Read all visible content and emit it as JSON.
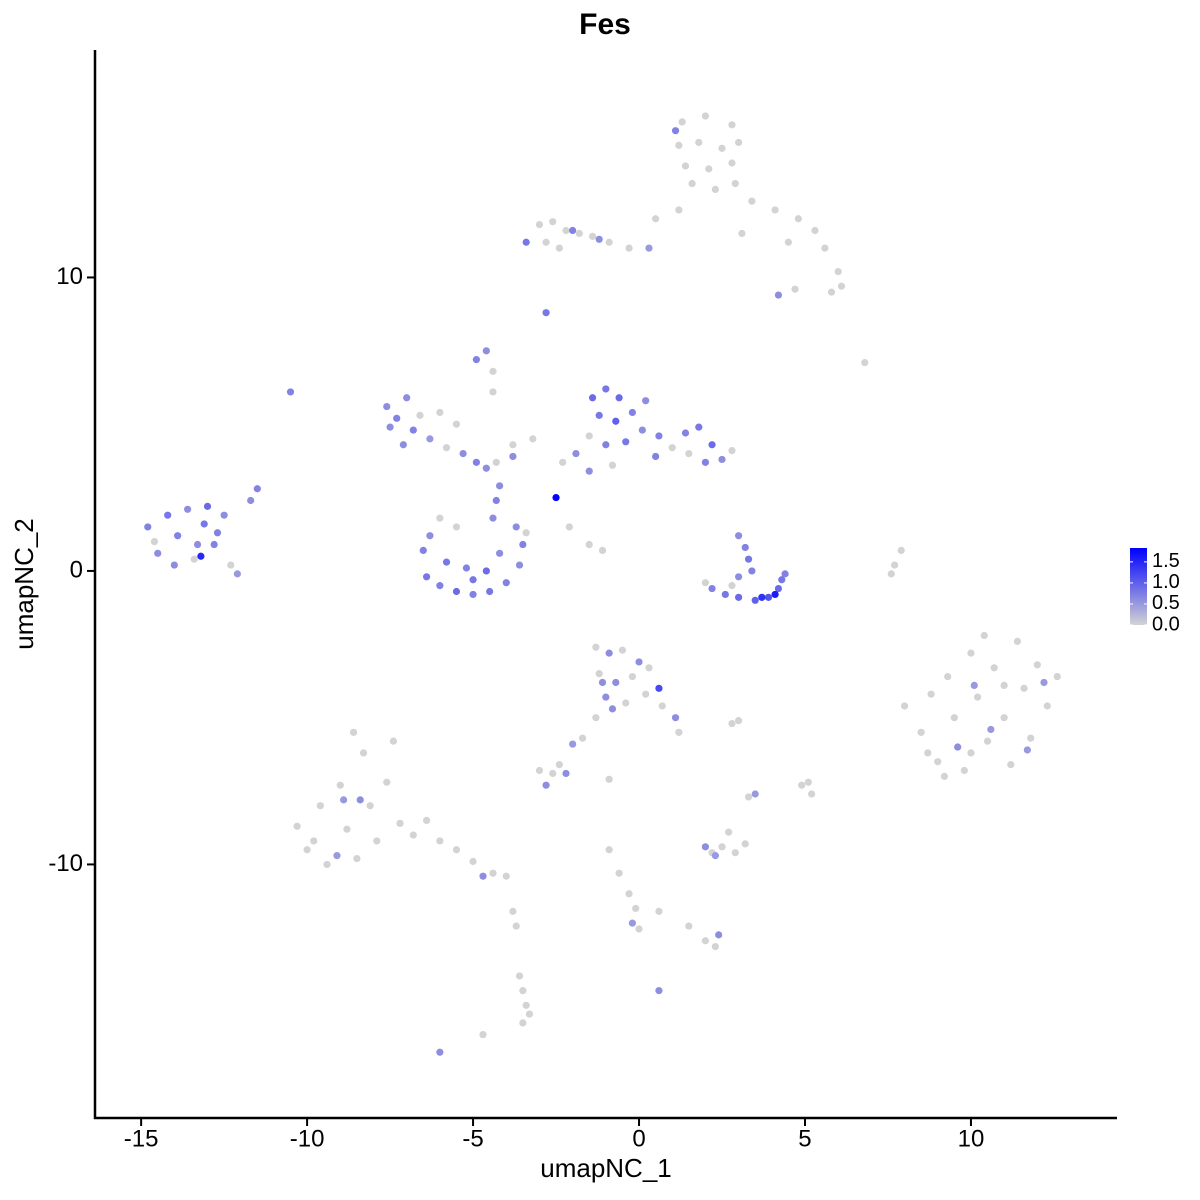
{
  "chart_data": {
    "type": "scatter",
    "title": "Fes",
    "x_label": "umapNC_1",
    "y_label": "umapNC_2",
    "xlim": [
      -16.39,
      14.4
    ],
    "ylim": [
      -18.64,
      17.75
    ],
    "xticks": [
      -15,
      -10,
      -5,
      0,
      5,
      10
    ],
    "yticks": [
      -10,
      0,
      10
    ],
    "grid": false,
    "color_scale": {
      "low": "#d3d3d3",
      "high": "#0000ff",
      "lim": [
        0,
        1.83
      ],
      "ticks": [
        {
          "value": 0,
          "label": "0.0"
        },
        {
          "value": 0.5,
          "label": "0.5"
        },
        {
          "value": 1,
          "label": "1.0"
        },
        {
          "value": 1.5,
          "label": "1.5"
        }
      ]
    },
    "x": [
      1.3,
      2.0,
      2.8,
      1.2,
      1.8,
      2.5,
      3.0,
      1.4,
      2.1,
      2.8,
      1.6,
      2.3,
      2.9,
      3.4,
      4.1,
      4.8,
      5.3,
      5.6,
      6.0,
      5.8,
      6.1,
      4.7,
      4.2,
      1.2,
      0.5,
      3.1,
      4.5,
      1.1,
      -3.0,
      -2.6,
      -2.2,
      -1.8,
      -1.4,
      -0.9,
      -0.3,
      -2.8,
      -2.4,
      -3.4,
      -2.0,
      -1.2,
      0.3,
      -2.8,
      -14.8,
      -14.5,
      -14.2,
      -13.9,
      -13.6,
      -13.4,
      -13.1,
      -12.8,
      -12.5,
      -12.3,
      -14.0,
      -13.0,
      -12.7,
      -14.6,
      -13.3,
      -12.1,
      -11.7,
      -11.5,
      -13.2,
      -10.5,
      -6.5,
      -6.4,
      -6.0,
      -5.5,
      -5.0,
      -4.5,
      -4.0,
      -3.6,
      -3.5,
      -3.7,
      -6.3,
      -5.8,
      -5.2,
      -4.6,
      -4.2,
      -5.0,
      -4.4,
      -4.3,
      -4.2,
      -6.0,
      -5.5,
      -3.4,
      -7.6,
      -7.3,
      -7.0,
      -6.8,
      -7.5,
      -6.3,
      -5.8,
      -5.3,
      -4.9,
      -4.6,
      -4.3,
      -3.8,
      -6.0,
      -5.5,
      -4.4,
      -4.9,
      -4.6,
      -4.4,
      -3.8,
      -3.2,
      -7.1,
      -6.6,
      -1.4,
      -1.0,
      -0.6,
      -1.2,
      -0.7,
      -0.2,
      -1.5,
      -1.0,
      -0.4,
      0.1,
      0.6,
      1.0,
      1.4,
      1.8,
      2.2,
      2.5,
      2.0,
      1.5,
      -1.9,
      -2.3,
      -1.5,
      0.5,
      -0.8,
      2.8,
      0.2,
      -2.5,
      3.0,
      3.2,
      3.3,
      3.4,
      3.0,
      2.2,
      2.6,
      3.0,
      3.5,
      3.9,
      4.2,
      4.4,
      4.1,
      3.7,
      2.0,
      2.8,
      4.3,
      8.0,
      8.5,
      8.8,
      9.0,
      9.3,
      9.5,
      9.8,
      10.0,
      10.2,
      10.5,
      10.7,
      11.0,
      11.2,
      11.4,
      11.6,
      11.8,
      12.0,
      12.3,
      12.6,
      10.0,
      9.2,
      8.7,
      11.0,
      10.4,
      10.6,
      9.6,
      11.7,
      12.2,
      10.1,
      7.9,
      7.7,
      7.6,
      6.8,
      -10.3,
      -10.0,
      -9.6,
      -9.4,
      -9.0,
      -8.8,
      -8.5,
      -8.3,
      -8.6,
      -8.1,
      -7.9,
      -7.6,
      -7.4,
      -7.2,
      -6.8,
      -6.4,
      -6.0,
      -5.5,
      -5.0,
      -4.4,
      -4.0,
      -9.8,
      -8.9,
      -9.1,
      -4.7,
      -8.4,
      -1.3,
      -0.9,
      -0.5,
      -1.2,
      -0.7,
      -0.2,
      0.3,
      -1.0,
      -0.4,
      0.2,
      0.7,
      1.1,
      1.2,
      -1.3,
      0.6,
      -0.8,
      0.0,
      -1.1,
      -3.0,
      -2.6,
      -2.4,
      -2.8,
      -2.2,
      -1.7,
      -2.0,
      -0.9,
      2.5,
      2.9,
      3.2,
      2.2,
      2.0,
      2.3,
      2.7,
      -0.9,
      -0.6,
      -0.3,
      -0.1,
      0.0,
      -0.2,
      0.6,
      1.5,
      2.0,
      2.3,
      2.4,
      -3.6,
      -3.5,
      -3.4,
      -3.3,
      -3.5,
      0.6,
      -6.0,
      -4.7,
      -3.8,
      -3.7,
      3.3,
      3.5,
      4.9,
      5.1,
      5.2,
      3.0,
      2.8,
      -2.1,
      -1.5,
      -1.1
    ],
    "series": [
      {
        "values": [
          15.3,
          15.5,
          15.2,
          14.5,
          14.6,
          14.4,
          14.6,
          13.8,
          13.7,
          13.9,
          13.2,
          13.0,
          13.2,
          12.6,
          12.3,
          12.0,
          11.6,
          11.0,
          10.2,
          9.5,
          9.7,
          9.6,
          9.4,
          12.3,
          12.0,
          11.5,
          11.2,
          15.0,
          11.8,
          11.9,
          11.6,
          11.5,
          11.4,
          11.2,
          11.0,
          11.2,
          11.0,
          11.2,
          11.6,
          11.3,
          11.0,
          8.8,
          1.5,
          0.6,
          1.9,
          1.2,
          2.1,
          0.4,
          1.6,
          0.9,
          1.9,
          0.2,
          0.2,
          2.2,
          1.3,
          1.0,
          0.9,
          -0.1,
          2.4,
          2.8,
          0.5,
          6.1,
          0.7,
          -0.2,
          -0.5,
          -0.7,
          -0.8,
          -0.7,
          -0.4,
          0.2,
          0.9,
          1.5,
          1.2,
          0.3,
          0.1,
          0.0,
          0.6,
          -0.3,
          1.8,
          2.4,
          2.9,
          1.8,
          1.5,
          1.3,
          5.6,
          5.2,
          5.9,
          4.8,
          4.9,
          4.5,
          4.2,
          4.0,
          3.7,
          3.5,
          3.7,
          3.9,
          5.4,
          5.0,
          6.1,
          7.2,
          7.5,
          6.8,
          4.3,
          4.5,
          4.3,
          5.3,
          5.9,
          6.2,
          5.9,
          5.3,
          5.1,
          5.4,
          4.6,
          4.3,
          4.4,
          4.8,
          4.6,
          4.2,
          4.7,
          4.9,
          4.3,
          3.8,
          3.7,
          4.0,
          4.0,
          3.7,
          3.4,
          3.9,
          3.6,
          4.1,
          5.8,
          2.5,
          1.2,
          0.8,
          0.4,
          0.0,
          -0.2,
          -0.6,
          -0.8,
          -0.9,
          -1.0,
          -0.9,
          -0.6,
          -0.1,
          -0.8,
          -0.9,
          -0.4,
          -0.5,
          -0.3,
          -4.6,
          -5.5,
          -4.2,
          -6.5,
          -3.6,
          -5.0,
          -6.8,
          -2.8,
          -4.3,
          -5.8,
          -3.3,
          -5.0,
          -6.6,
          -2.4,
          -4.0,
          -5.7,
          -3.2,
          -4.6,
          -3.6,
          -6.2,
          -7.0,
          -6.2,
          -3.9,
          -2.2,
          -5.4,
          -6.0,
          -6.1,
          -3.8,
          -3.9,
          0.7,
          0.2,
          -0.1,
          7.1,
          -8.7,
          -9.5,
          -8.0,
          -10.0,
          -7.3,
          -8.8,
          -9.8,
          -6.2,
          -5.5,
          -8.0,
          -9.2,
          -7.2,
          -5.8,
          -8.6,
          -9.0,
          -8.5,
          -9.2,
          -9.5,
          -9.9,
          -10.3,
          -10.4,
          -9.2,
          -7.8,
          -9.7,
          -10.4,
          -7.8,
          -2.6,
          -2.8,
          -2.7,
          -3.5,
          -3.8,
          -3.6,
          -3.3,
          -4.3,
          -4.5,
          -4.2,
          -4.6,
          -5.0,
          -5.5,
          -5.0,
          -4.0,
          -4.7,
          -3.1,
          -3.8,
          -6.8,
          -6.9,
          -6.6,
          -7.3,
          -6.9,
          -5.7,
          -5.9,
          -7.1,
          -9.4,
          -9.6,
          -9.3,
          -9.6,
          -9.4,
          -9.7,
          -8.9,
          -9.5,
          -10.3,
          -11.0,
          -11.5,
          -12.2,
          -12.0,
          -11.6,
          -12.1,
          -12.6,
          -12.8,
          -12.4,
          -13.8,
          -14.3,
          -14.8,
          -15.1,
          -15.4,
          -14.3,
          -16.4,
          -15.8,
          -11.6,
          -12.1,
          -7.7,
          -7.6,
          -7.3,
          -7.2,
          -7.6,
          -5.1,
          -5.2,
          1.5,
          0.9,
          0.7
        ],
        "color_values": [
          0,
          0,
          0,
          0,
          0,
          0,
          0,
          0,
          0,
          0,
          0,
          0,
          0,
          0,
          0,
          0,
          0,
          0,
          0,
          0,
          0,
          0,
          0.6,
          0,
          0,
          0,
          0,
          0.7,
          0,
          0,
          0,
          0,
          0,
          0,
          0,
          0,
          0,
          0.8,
          0.7,
          0.6,
          0.5,
          0.8,
          0.7,
          0.6,
          0.8,
          0.7,
          0.6,
          0,
          0.8,
          0.7,
          0.6,
          0,
          0.6,
          0.9,
          0.7,
          0,
          0.6,
          0.5,
          0.6,
          0.7,
          1.5,
          0.7,
          0.7,
          0.8,
          0.7,
          0.9,
          0.7,
          0.8,
          0.7,
          0.6,
          0.7,
          0.6,
          0.6,
          0.8,
          0.7,
          0.9,
          0.6,
          0.8,
          0.6,
          0.7,
          0.6,
          0,
          0,
          0,
          0.6,
          0.7,
          0.6,
          0.7,
          0.6,
          0.5,
          0,
          0.6,
          0.7,
          0.6,
          0,
          0.6,
          0,
          0,
          0,
          0.7,
          0.6,
          0,
          0,
          0,
          0.6,
          0,
          0.9,
          0.8,
          0.9,
          0.8,
          1.0,
          0.7,
          0,
          0.7,
          0.8,
          0.6,
          0.7,
          0,
          0.7,
          0.8,
          0.9,
          0.6,
          0.7,
          0,
          0.6,
          0,
          0.6,
          0.7,
          0,
          0,
          0.6,
          1.8,
          0.6,
          0.7,
          0.8,
          0.7,
          0.6,
          0.7,
          0.8,
          0.9,
          1.0,
          1.1,
          0.9,
          0.7,
          1.6,
          1.4,
          0,
          0,
          0.8,
          0,
          0,
          0,
          0,
          0,
          0,
          0,
          0,
          0,
          0,
          0,
          0,
          0,
          0,
          0,
          0,
          0,
          0,
          0,
          0,
          0,
          0,
          0,
          0,
          0.5,
          0.6,
          0.5,
          0.5,
          0.5,
          0,
          0,
          0,
          0,
          0,
          0,
          0,
          0,
          0,
          0,
          0,
          0,
          0,
          0,
          0,
          0,
          0,
          0,
          0,
          0,
          0,
          0,
          0,
          0,
          0,
          0,
          0.5,
          0.5,
          0.6,
          0.6,
          0,
          0.6,
          0,
          0,
          0.6,
          0,
          0,
          0.6,
          0,
          0,
          0,
          0.6,
          0,
          0,
          1.2,
          0.6,
          0.6,
          0.6,
          0,
          0,
          0,
          0.6,
          0.6,
          0,
          0.5,
          0,
          0,
          0,
          0,
          0,
          0.6,
          0.5,
          0,
          0,
          0,
          0,
          0,
          0,
          0.5,
          0,
          0,
          0,
          0,
          0.6,
          0,
          0,
          0,
          0,
          0,
          0.6,
          0.6,
          0,
          0,
          0,
          0,
          0.5,
          0,
          0,
          0,
          0,
          0,
          0,
          0,
          0
        ]
      }
    ]
  }
}
